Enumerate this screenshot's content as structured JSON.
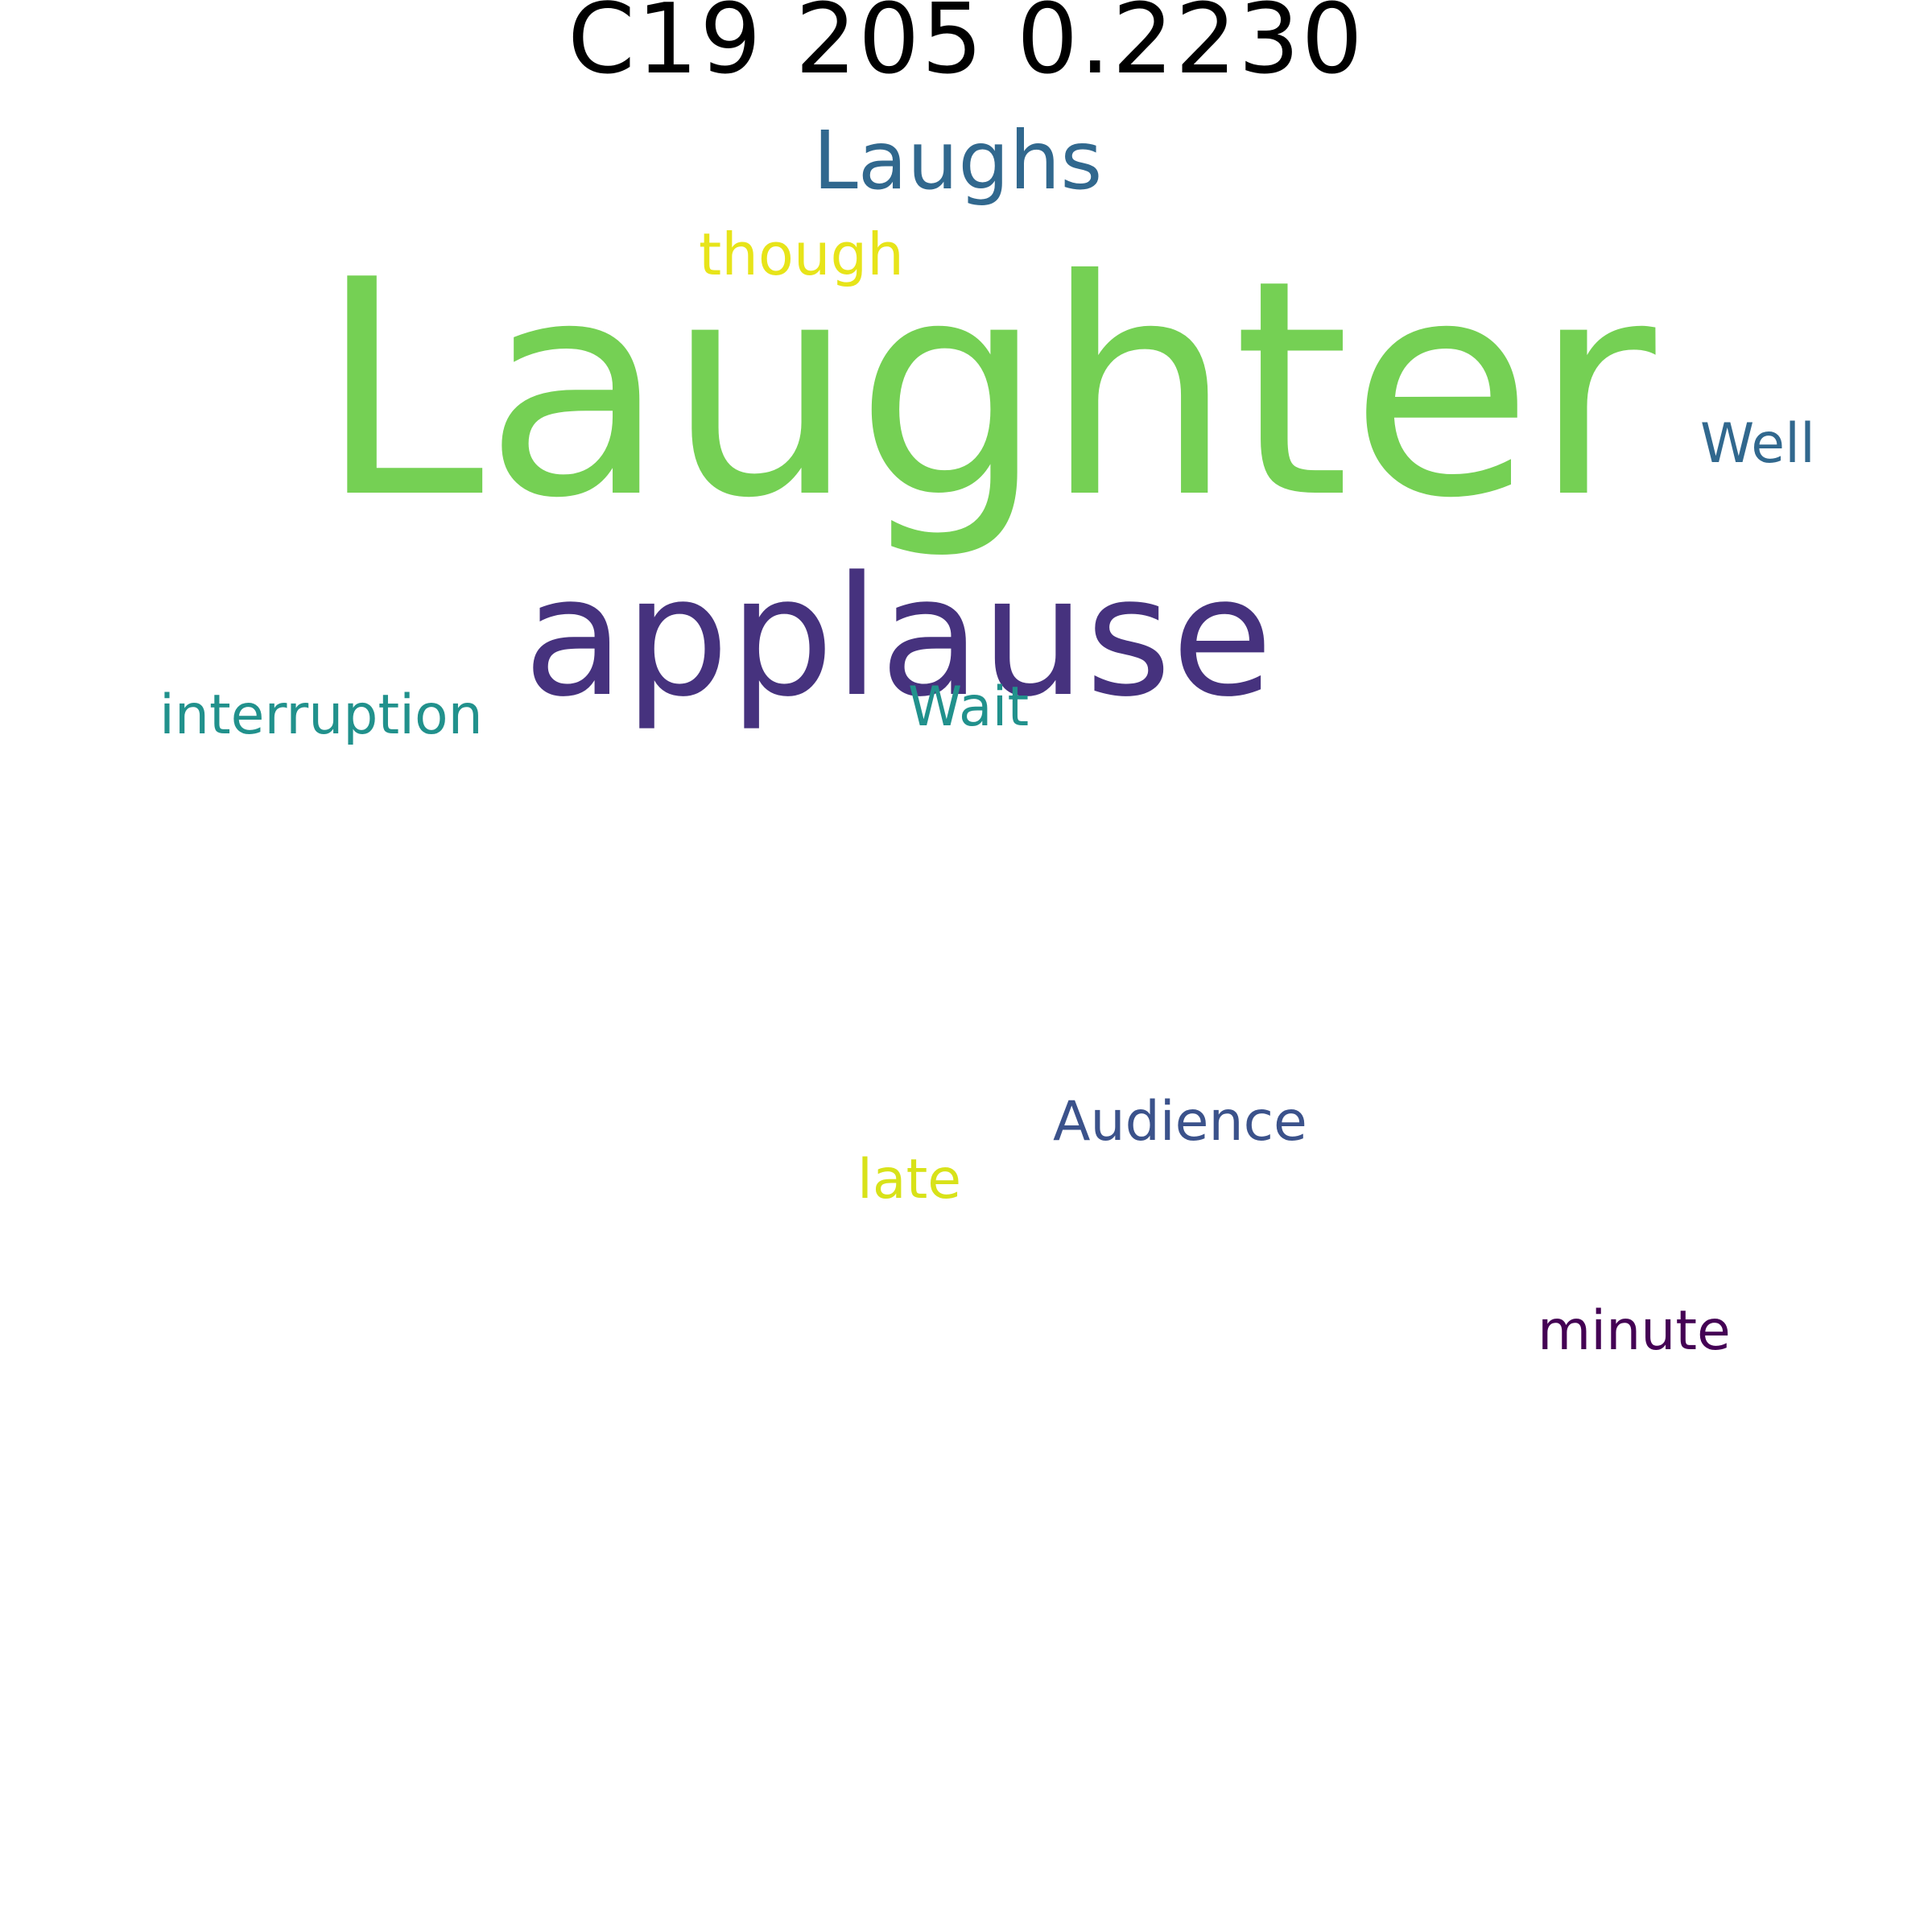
{
  "title": "C19 205 0.2230",
  "words": [
    {
      "key": "laughter",
      "text": "Laughter",
      "color": "#75d054"
    },
    {
      "key": "applause",
      "text": "applause",
      "color": "#46327e"
    },
    {
      "key": "laughs",
      "text": "Laughs",
      "color": "#31688e"
    },
    {
      "key": "though",
      "text": "though",
      "color": "#e7e419"
    },
    {
      "key": "well",
      "text": "Well",
      "color": "#31688e"
    },
    {
      "key": "interruption",
      "text": "interruption",
      "color": "#21918c"
    },
    {
      "key": "wait",
      "text": "Wait",
      "color": "#21918c"
    },
    {
      "key": "audience",
      "text": "Audience",
      "color": "#3b528b"
    },
    {
      "key": "late",
      "text": "late",
      "color": "#d8e219"
    },
    {
      "key": "minute",
      "text": "minute",
      "color": "#440154"
    }
  ]
}
